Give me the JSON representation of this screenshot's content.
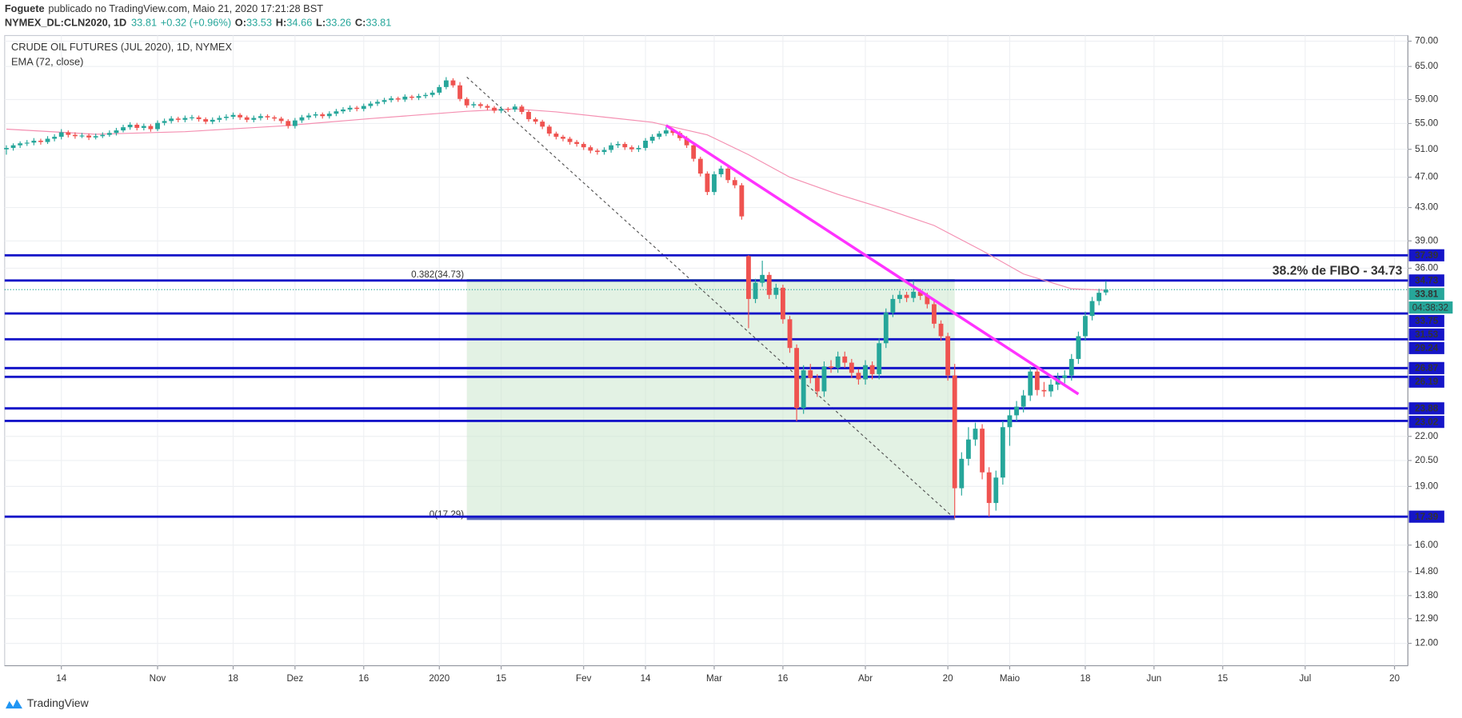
{
  "header": {
    "author": "Foguete",
    "published": "publicado no TradingView.com, Maio 21, 2020 17:21:28 BST",
    "symbol": "NYMEX_DL:CLN2020, 1D",
    "change": "+0.32 (+0.96%)",
    "o_label": "O:",
    "h_label": "H:",
    "l_label": "L:",
    "c_label": "C:"
  },
  "footer": {
    "brand": "TradingView"
  },
  "chart_data": {
    "type": "candlestick",
    "title": "CRUDE OIL FUTURES (JUL 2020), 1D, NYMEX",
    "xlim": [
      -0.25,
      203.95
    ],
    "xticks": [
      {
        "value": 8,
        "label": "14"
      },
      {
        "value": 22,
        "label": "Nov"
      },
      {
        "value": 33,
        "label": "18"
      },
      {
        "value": 42,
        "label": "Dez"
      },
      {
        "value": 52,
        "label": "16"
      },
      {
        "value": 63,
        "label": "2020"
      },
      {
        "value": 72,
        "label": "15"
      },
      {
        "value": 84,
        "label": "Fev"
      },
      {
        "value": 93,
        "label": "14"
      },
      {
        "value": 103,
        "label": "Mar"
      },
      {
        "value": 113,
        "label": "16"
      },
      {
        "value": 125,
        "label": "Abr"
      },
      {
        "value": 137,
        "label": "20"
      },
      {
        "value": 146,
        "label": "Maio"
      },
      {
        "value": 157,
        "label": "18"
      },
      {
        "value": 167,
        "label": "Jun"
      },
      {
        "value": 177,
        "label": "15"
      },
      {
        "value": 189,
        "label": "Jul"
      },
      {
        "value": 202,
        "label": "20"
      }
    ],
    "ylim": [
      11.24,
      71.16
    ],
    "log_scale": true,
    "yticks": [
      {
        "value": 70,
        "label": "70.00"
      },
      {
        "value": 65,
        "label": "65.00"
      },
      {
        "value": 59,
        "label": "59.00"
      },
      {
        "value": 55,
        "label": "55.00"
      },
      {
        "value": 51,
        "label": "51.00"
      },
      {
        "value": 47,
        "label": "47.00"
      },
      {
        "value": 43,
        "label": "43.00"
      },
      {
        "value": 39,
        "label": "39.00"
      },
      {
        "value": 36,
        "label": "36.00"
      },
      {
        "value": 22,
        "label": "22.00"
      },
      {
        "value": 20.5,
        "label": "20.50"
      },
      {
        "value": 19,
        "label": "19.00"
      },
      {
        "value": 16,
        "label": "16.00"
      },
      {
        "value": 14.8,
        "label": "14.80"
      },
      {
        "value": 13.8,
        "label": "13.80"
      },
      {
        "value": 12.9,
        "label": "12.90"
      },
      {
        "value": 12,
        "label": "12.00"
      }
    ],
    "grid": true,
    "up_color": "#26a69a",
    "down_color": "#ef5350",
    "ohlc": [
      [
        51.0,
        51.6,
        50.2,
        51.2
      ],
      [
        51.2,
        51.9,
        50.8,
        51.6
      ],
      [
        51.6,
        52.2,
        51.2,
        51.9
      ],
      [
        51.9,
        52.4,
        51.5,
        52.0
      ],
      [
        52.0,
        52.7,
        51.6,
        52.3
      ],
      [
        52.3,
        52.6,
        51.7,
        52.1
      ],
      [
        52.1,
        53.0,
        51.8,
        52.6
      ],
      [
        52.6,
        53.3,
        52.2,
        52.9
      ],
      [
        52.9,
        54.1,
        52.5,
        53.6
      ],
      [
        53.6,
        53.9,
        52.8,
        53.2
      ],
      [
        53.2,
        53.6,
        52.6,
        53.0
      ],
      [
        53.0,
        53.5,
        52.7,
        53.1
      ],
      [
        53.1,
        53.4,
        52.4,
        52.8
      ],
      [
        52.8,
        53.4,
        52.5,
        53.0
      ],
      [
        53.0,
        53.6,
        52.7,
        53.2
      ],
      [
        53.2,
        53.9,
        52.9,
        53.5
      ],
      [
        53.5,
        54.3,
        53.1,
        53.9
      ],
      [
        53.9,
        54.8,
        53.6,
        54.4
      ],
      [
        54.4,
        55.2,
        54.0,
        54.8
      ],
      [
        54.8,
        55.1,
        53.9,
        54.3
      ],
      [
        54.3,
        55.0,
        53.9,
        54.6
      ],
      [
        54.6,
        54.9,
        53.7,
        54.1
      ],
      [
        54.1,
        55.5,
        53.8,
        55.1
      ],
      [
        55.1,
        55.8,
        54.7,
        55.4
      ],
      [
        55.4,
        56.2,
        55.0,
        55.8
      ],
      [
        55.8,
        56.1,
        55.2,
        55.6
      ],
      [
        55.6,
        56.3,
        55.2,
        55.9
      ],
      [
        55.9,
        56.4,
        55.5,
        56.0
      ],
      [
        56.0,
        56.3,
        55.3,
        55.7
      ],
      [
        55.7,
        56.0,
        54.9,
        55.3
      ],
      [
        55.3,
        56.0,
        54.9,
        55.6
      ],
      [
        55.6,
        56.3,
        55.2,
        55.9
      ],
      [
        55.9,
        56.5,
        55.5,
        56.1
      ],
      [
        56.1,
        56.8,
        55.7,
        56.4
      ],
      [
        56.4,
        56.7,
        55.6,
        56.0
      ],
      [
        56.0,
        56.3,
        55.2,
        55.6
      ],
      [
        55.6,
        56.3,
        55.2,
        55.9
      ],
      [
        55.9,
        56.6,
        55.5,
        56.2
      ],
      [
        56.2,
        56.5,
        55.6,
        56.0
      ],
      [
        56.0,
        56.3,
        55.4,
        55.8
      ],
      [
        55.8,
        56.1,
        55.0,
        55.4
      ],
      [
        55.4,
        55.7,
        54.2,
        54.6
      ],
      [
        54.6,
        55.9,
        54.2,
        55.5
      ],
      [
        55.5,
        56.4,
        55.1,
        56.0
      ],
      [
        56.0,
        56.7,
        55.6,
        56.3
      ],
      [
        56.3,
        56.9,
        55.9,
        56.5
      ],
      [
        56.5,
        56.8,
        55.8,
        56.2
      ],
      [
        56.2,
        57.0,
        55.8,
        56.6
      ],
      [
        56.6,
        57.4,
        56.2,
        57.0
      ],
      [
        57.0,
        57.7,
        56.6,
        57.3
      ],
      [
        57.3,
        58.0,
        56.9,
        57.6
      ],
      [
        57.6,
        57.9,
        57.0,
        57.4
      ],
      [
        57.4,
        58.3,
        57.0,
        57.9
      ],
      [
        57.9,
        58.7,
        57.5,
        58.3
      ],
      [
        58.3,
        59.0,
        57.9,
        58.6
      ],
      [
        58.6,
        59.3,
        58.2,
        58.9
      ],
      [
        58.9,
        59.6,
        58.5,
        59.2
      ],
      [
        59.2,
        59.5,
        58.6,
        59.0
      ],
      [
        59.0,
        59.9,
        58.6,
        59.5
      ],
      [
        59.5,
        59.8,
        58.9,
        59.3
      ],
      [
        59.3,
        60.0,
        58.9,
        59.6
      ],
      [
        59.6,
        60.2,
        59.2,
        59.8
      ],
      [
        59.8,
        60.6,
        59.4,
        60.2
      ],
      [
        60.2,
        61.6,
        59.8,
        61.2
      ],
      [
        61.2,
        63.0,
        60.8,
        62.4
      ],
      [
        62.4,
        62.8,
        61.1,
        61.5
      ],
      [
        61.5,
        62.1,
        58.7,
        59.1
      ],
      [
        59.1,
        59.4,
        57.6,
        58.0
      ],
      [
        58.0,
        58.6,
        57.6,
        58.2
      ],
      [
        58.2,
        58.5,
        57.5,
        57.9
      ],
      [
        57.9,
        58.2,
        57.2,
        57.6
      ],
      [
        57.6,
        57.9,
        56.7,
        57.1
      ],
      [
        57.1,
        57.8,
        56.7,
        57.4
      ],
      [
        57.4,
        57.7,
        56.9,
        57.3
      ],
      [
        57.3,
        58.2,
        56.9,
        57.8
      ],
      [
        57.8,
        58.1,
        56.5,
        56.9
      ],
      [
        56.9,
        57.2,
        55.3,
        55.7
      ],
      [
        55.7,
        56.0,
        54.9,
        55.3
      ],
      [
        55.3,
        55.6,
        54.1,
        54.5
      ],
      [
        54.5,
        54.8,
        53.0,
        53.4
      ],
      [
        53.4,
        53.7,
        52.5,
        52.9
      ],
      [
        52.9,
        53.2,
        52.2,
        52.6
      ],
      [
        52.6,
        52.9,
        51.7,
        52.1
      ],
      [
        52.1,
        52.4,
        51.4,
        51.8
      ],
      [
        51.8,
        52.1,
        50.9,
        51.3
      ],
      [
        51.3,
        51.6,
        50.4,
        50.8
      ],
      [
        50.8,
        51.1,
        50.2,
        50.6
      ],
      [
        50.6,
        51.3,
        50.2,
        50.9
      ],
      [
        50.9,
        52.0,
        50.5,
        51.6
      ],
      [
        51.6,
        52.2,
        51.2,
        51.8
      ],
      [
        51.8,
        52.1,
        50.9,
        51.3
      ],
      [
        51.3,
        51.6,
        50.6,
        51.0
      ],
      [
        51.0,
        51.6,
        50.6,
        51.2
      ],
      [
        51.2,
        52.7,
        50.8,
        52.3
      ],
      [
        52.3,
        53.3,
        51.9,
        52.9
      ],
      [
        52.9,
        53.8,
        52.5,
        53.4
      ],
      [
        53.4,
        54.4,
        53.0,
        53.9
      ],
      [
        53.9,
        54.2,
        53.1,
        53.5
      ],
      [
        53.5,
        53.8,
        52.3,
        52.7
      ],
      [
        52.7,
        53.0,
        51.2,
        51.6
      ],
      [
        51.6,
        51.9,
        49.2,
        49.6
      ],
      [
        49.6,
        49.9,
        47.1,
        47.5
      ],
      [
        47.5,
        47.8,
        44.6,
        45.0
      ],
      [
        45.0,
        47.8,
        44.6,
        47.4
      ],
      [
        47.4,
        48.6,
        47.0,
        48.2
      ],
      [
        48.2,
        48.5,
        46.2,
        46.6
      ],
      [
        46.6,
        47.0,
        45.5,
        45.9
      ],
      [
        45.9,
        46.2,
        41.5,
        41.9
      ],
      [
        37.3,
        37.4,
        30.2,
        32.9
      ],
      [
        32.9,
        34.9,
        32.5,
        34.5
      ],
      [
        34.5,
        36.8,
        34.1,
        35.3
      ],
      [
        35.3,
        35.6,
        32.9,
        33.3
      ],
      [
        33.3,
        34.4,
        32.9,
        34.0
      ],
      [
        34.0,
        34.3,
        30.6,
        31.0
      ],
      [
        31.0,
        31.3,
        28.1,
        28.5
      ],
      [
        28.5,
        28.8,
        23.0,
        23.9
      ],
      [
        23.9,
        27.1,
        23.5,
        26.7
      ],
      [
        26.7,
        27.2,
        25.7,
        26.1
      ],
      [
        26.1,
        26.4,
        24.7,
        25.1
      ],
      [
        25.1,
        27.4,
        24.7,
        27.0
      ],
      [
        27.0,
        27.5,
        26.5,
        26.9
      ],
      [
        26.9,
        28.2,
        26.5,
        27.8
      ],
      [
        27.8,
        28.2,
        26.9,
        27.3
      ],
      [
        27.3,
        27.6,
        26.1,
        26.5
      ],
      [
        26.5,
        26.8,
        25.6,
        26.0
      ],
      [
        26.0,
        27.5,
        25.6,
        27.1
      ],
      [
        27.1,
        27.4,
        26.0,
        26.4
      ],
      [
        26.4,
        29.3,
        26.0,
        28.9
      ],
      [
        28.9,
        32.0,
        28.5,
        31.6
      ],
      [
        31.6,
        33.3,
        31.2,
        32.9
      ],
      [
        32.9,
        33.7,
        32.5,
        33.3
      ],
      [
        33.3,
        33.6,
        32.6,
        33.0
      ],
      [
        33.0,
        34.7,
        32.6,
        33.6
      ],
      [
        33.6,
        33.9,
        32.8,
        33.2
      ],
      [
        33.2,
        33.5,
        32.0,
        32.4
      ],
      [
        32.4,
        32.7,
        30.2,
        30.6
      ],
      [
        30.6,
        30.9,
        29.1,
        29.5
      ],
      [
        29.5,
        29.8,
        25.9,
        26.3
      ],
      [
        26.3,
        27.2,
        17.3,
        18.9
      ],
      [
        18.9,
        21.0,
        18.5,
        20.6
      ],
      [
        20.6,
        22.6,
        20.2,
        21.8
      ],
      [
        21.8,
        22.9,
        21.4,
        22.5
      ],
      [
        22.5,
        22.8,
        19.4,
        19.8
      ],
      [
        19.8,
        20.1,
        17.4,
        18.1
      ],
      [
        18.1,
        19.9,
        17.7,
        19.5
      ],
      [
        19.5,
        23.0,
        19.1,
        22.6
      ],
      [
        22.6,
        23.8,
        21.4,
        23.4
      ],
      [
        23.4,
        24.4,
        23.0,
        24.0
      ],
      [
        24.0,
        25.2,
        23.6,
        24.8
      ],
      [
        24.8,
        27.0,
        24.4,
        26.6
      ],
      [
        26.6,
        26.9,
        24.8,
        25.2
      ],
      [
        25.2,
        25.8,
        24.7,
        25.1
      ],
      [
        25.1,
        26.0,
        24.7,
        25.6
      ],
      [
        25.6,
        26.5,
        25.2,
        26.1
      ],
      [
        26.1,
        26.7,
        25.7,
        26.3
      ],
      [
        26.3,
        28.0,
        25.9,
        27.6
      ],
      [
        27.6,
        29.9,
        27.2,
        29.5
      ],
      [
        29.5,
        31.7,
        29.1,
        31.3
      ],
      [
        31.3,
        33.1,
        30.9,
        32.7
      ],
      [
        32.7,
        33.9,
        32.3,
        33.5
      ],
      [
        33.53,
        34.66,
        33.26,
        33.81
      ]
    ],
    "ema": {
      "name": "EMA (72, close)",
      "color": "#f48fb1",
      "x": [
        0,
        13,
        26,
        40,
        53,
        67,
        74,
        80,
        94,
        102,
        108,
        114,
        121,
        128,
        135,
        142,
        148,
        155,
        160
      ],
      "values": [
        54.1,
        53.3,
        53.7,
        54.6,
        55.8,
        57.0,
        57.4,
        56.9,
        55.2,
        53.2,
        50.2,
        47.0,
        44.7,
        42.8,
        40.8,
        37.9,
        35.4,
        33.9,
        33.75
      ]
    },
    "levels": {
      "color": "#1515c8",
      "values": [
        37.39,
        34.73,
        31.53,
        29.24,
        26.87,
        26.19,
        23.88,
        23.02,
        17.39
      ]
    },
    "timer": "04:38:32",
    "annotation": "38.2% de FIBO - 34.73",
    "trendline": {
      "color": "#ff33ff",
      "x": [
        96,
        156
      ],
      "values": [
        54.7,
        24.9
      ]
    },
    "fib": {
      "x": [
        67,
        138
      ],
      "levels": [
        34.73,
        17.29
      ],
      "labels": [
        "0.382(34.73)",
        "0(17.29)"
      ],
      "color": "#c8e6c9"
    },
    "fib_diagonal": {
      "x": [
        67,
        138
      ],
      "values": [
        63.0,
        17.29
      ]
    }
  }
}
